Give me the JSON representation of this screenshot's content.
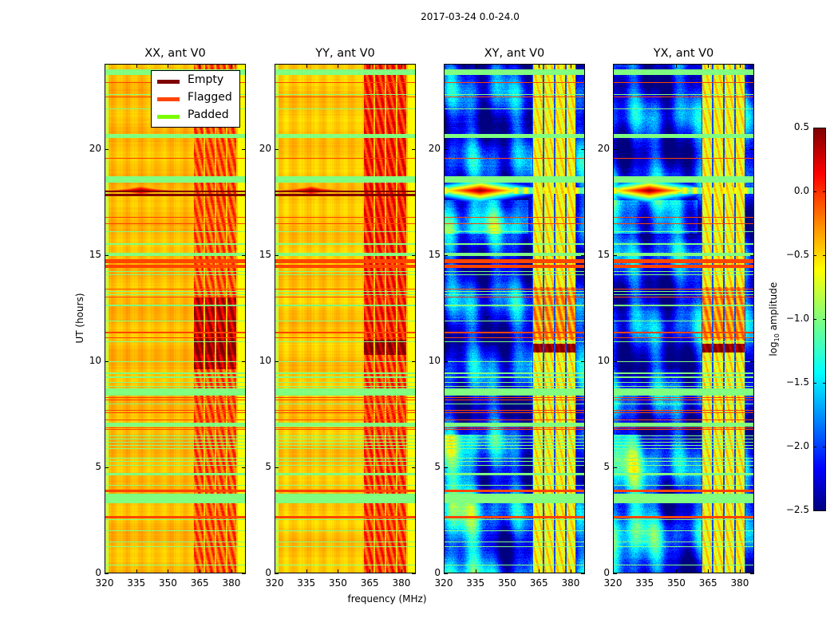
{
  "figure": {
    "title": "2017-03-24 0.0-24.0",
    "ylabel": "UT (hours)",
    "xlabel": "frequency (MHz)"
  },
  "legend": {
    "placement": "top-right of first panel",
    "items": [
      {
        "label": "Empty",
        "color": "#800000"
      },
      {
        "label": "Flagged",
        "color": "#ff4500"
      },
      {
        "label": "Padded",
        "color": "#7cfc00"
      }
    ]
  },
  "colorbar": {
    "label_prefix": "log",
    "label_sub": "10",
    "label_suffix": " amplitude",
    "range": [
      -2.5,
      0.5
    ],
    "colormap": "jet",
    "ticks": [
      "0.5",
      "0.0",
      "−0.5",
      "−1.0",
      "−1.5",
      "−2.0",
      "−2.5"
    ],
    "tick_values": [
      0.5,
      0.0,
      -0.5,
      -1.0,
      -1.5,
      -2.0,
      -2.5
    ]
  },
  "chart_data": [
    {
      "type": "heatmap",
      "title": "XX, ant V0",
      "kind": "auto",
      "xlim": [
        320,
        386.8
      ],
      "ylim": [
        0,
        24
      ],
      "xticks": [
        320,
        335,
        350,
        365,
        380
      ],
      "xtick_labels": [
        "320",
        "335",
        "350",
        "365",
        "380"
      ],
      "yticks": [
        0,
        5,
        10,
        15,
        20
      ],
      "ytick_labels": [
        "0",
        "5",
        "10",
        "15",
        "20"
      ],
      "base_level": -0.42,
      "rfi_level": -0.12,
      "rfi_gap_level": -0.45,
      "rfi_strong": [
        {
          "ut": [
            9.6,
            13.0
          ],
          "level": 0.3
        },
        {
          "ut": [
            10.3,
            11.0
          ],
          "level": 0.45
        }
      ],
      "source": {
        "freq": 337,
        "ut": 18.05,
        "peak": 0.5
      },
      "empty_rows": [
        [
          17.8,
          17.9
        ],
        [
          17.98,
          18.06
        ]
      ]
    },
    {
      "type": "heatmap",
      "title": "YY, ant V0",
      "kind": "auto",
      "xlim": [
        320,
        386.8
      ],
      "ylim": [
        0,
        24
      ],
      "xticks": [
        320,
        335,
        350,
        365,
        380
      ],
      "xtick_labels": [
        "320",
        "335",
        "350",
        "365",
        "380"
      ],
      "yticks": [
        0,
        5,
        10,
        15,
        20
      ],
      "ytick_labels": [
        "0",
        "5",
        "10",
        "15",
        "20"
      ],
      "base_level": -0.45,
      "rfi_level": -0.05,
      "rfi_gap_level": -0.45,
      "rfi_strong": [
        {
          "ut": [
            10.3,
            11.0
          ],
          "level": 0.45
        },
        {
          "ut": [
            11.0,
            24
          ],
          "level": 0.05
        }
      ],
      "source": {
        "freq": 337,
        "ut": 18.05,
        "peak": 0.5
      },
      "empty_rows": [
        [
          17.8,
          17.9
        ],
        [
          17.98,
          18.06
        ]
      ]
    },
    {
      "type": "heatmap",
      "title": "XY, ant V0",
      "kind": "cross",
      "xlim": [
        320,
        386.8
      ],
      "ylim": [
        0,
        24
      ],
      "xticks": [
        320,
        335,
        350,
        365,
        380
      ],
      "xtick_labels": [
        "320",
        "335",
        "350",
        "365",
        "380"
      ],
      "yticks": [
        0,
        5,
        10,
        15,
        20
      ],
      "ytick_labels": [
        "0",
        "5",
        "10",
        "15",
        "20"
      ],
      "base_level": -2.05,
      "rfi_level": -0.6,
      "rfi_gap_level": -1.9,
      "rfi_strong": [
        {
          "ut": [
            10.4,
            10.8
          ],
          "level": 0.5
        },
        {
          "ut": [
            11.0,
            13.5
          ],
          "level": -0.3
        }
      ],
      "source": {
        "freq": 337,
        "ut": 18.05,
        "peak": 0.5
      },
      "empty_rows": []
    },
    {
      "type": "heatmap",
      "title": "YX, ant V0",
      "kind": "cross",
      "xlim": [
        320,
        386.8
      ],
      "ylim": [
        0,
        24
      ],
      "xticks": [
        320,
        335,
        350,
        365,
        380
      ],
      "xtick_labels": [
        "320",
        "335",
        "350",
        "365",
        "380"
      ],
      "yticks": [
        0,
        5,
        10,
        15,
        20
      ],
      "ytick_labels": [
        "0",
        "5",
        "10",
        "15",
        "20"
      ],
      "base_level": -2.05,
      "rfi_level": -0.6,
      "rfi_gap_level": -1.9,
      "rfi_strong": [
        {
          "ut": [
            10.4,
            10.8
          ],
          "level": 0.5
        },
        {
          "ut": [
            11.0,
            13.5
          ],
          "level": -0.3
        }
      ],
      "source": {
        "freq": 337,
        "ut": 18.05,
        "peak": 0.5
      },
      "empty_rows": []
    }
  ],
  "rfi_bands_mhz": [
    [
      362.3,
      366.9
    ],
    [
      367.8,
      372.2
    ],
    [
      373.1,
      377.5
    ],
    [
      378.4,
      382.7
    ]
  ],
  "flagged_rows_ut": [
    [
      23.12,
      23.16
    ],
    [
      22.44,
      22.48
    ],
    [
      19.55,
      19.59
    ],
    [
      16.77,
      16.81
    ],
    [
      16.47,
      16.51
    ],
    [
      14.62,
      14.82
    ],
    [
      14.38,
      14.56
    ],
    [
      13.38,
      13.42
    ],
    [
      12.98,
      13.02
    ],
    [
      11.32,
      11.36
    ],
    [
      11.08,
      11.12
    ],
    [
      8.26,
      8.3
    ],
    [
      8.12,
      8.16
    ],
    [
      7.64,
      7.68
    ],
    [
      7.52,
      7.56
    ],
    [
      7.2,
      7.24
    ],
    [
      7.14,
      7.17
    ],
    [
      6.82,
      6.86
    ],
    [
      6.76,
      6.79
    ],
    [
      3.8,
      3.9
    ],
    [
      2.55,
      2.68
    ]
  ],
  "padded_rows_ut": [
    [
      23.5,
      23.78
    ],
    [
      22.55,
      22.62
    ],
    [
      21.88,
      21.92
    ],
    [
      20.54,
      20.74
    ],
    [
      18.44,
      18.72
    ],
    [
      16.1,
      16.14
    ],
    [
      15.5,
      15.55
    ],
    [
      14.95,
      15.12
    ],
    [
      14.2,
      14.24
    ],
    [
      14.05,
      14.1
    ],
    [
      13.25,
      13.29
    ],
    [
      13.1,
      13.14
    ],
    [
      12.6,
      12.65
    ],
    [
      11.85,
      11.9
    ],
    [
      10.9,
      10.94
    ],
    [
      9.95,
      9.99
    ],
    [
      9.4,
      9.44
    ],
    [
      9.2,
      9.25
    ],
    [
      8.97,
      9.0
    ],
    [
      8.78,
      8.82
    ],
    [
      8.35,
      8.72
    ],
    [
      7.95,
      7.99
    ],
    [
      6.9,
      7.1
    ],
    [
      6.45,
      6.48
    ],
    [
      6.3,
      6.33
    ],
    [
      6.15,
      6.18
    ],
    [
      6.0,
      6.03
    ],
    [
      5.85,
      5.88
    ],
    [
      5.4,
      5.43
    ],
    [
      5.25,
      5.28
    ],
    [
      5.15,
      5.18
    ],
    [
      5.05,
      5.08
    ],
    [
      4.6,
      4.72
    ],
    [
      4.1,
      4.13
    ],
    [
      3.27,
      3.72
    ],
    [
      2.5,
      2.53
    ],
    [
      1.95,
      1.98
    ],
    [
      1.45,
      1.48
    ],
    [
      1.2,
      1.23
    ],
    [
      0.35,
      0.38
    ]
  ]
}
